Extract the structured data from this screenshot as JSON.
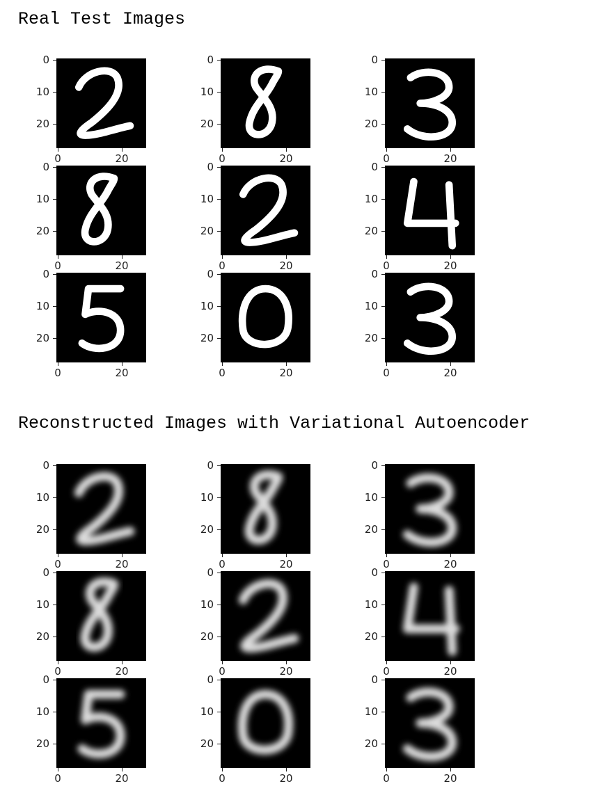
{
  "sections": [
    {
      "title": "Real Test Images",
      "style": "sharp",
      "panels": [
        {
          "digit": "2",
          "y_ticks": [
            "0",
            "10",
            "20"
          ],
          "x_ticks": [
            "0",
            "20"
          ]
        },
        {
          "digit": "8",
          "y_ticks": [
            "0",
            "10",
            "20"
          ],
          "x_ticks": [
            "0",
            "20"
          ]
        },
        {
          "digit": "3",
          "y_ticks": [
            "0",
            "10",
            "20"
          ],
          "x_ticks": [
            "0",
            "20"
          ]
        },
        {
          "digit": "8",
          "y_ticks": [
            "0",
            "10",
            "20"
          ],
          "x_ticks": [
            "0",
            "20"
          ]
        },
        {
          "digit": "2",
          "y_ticks": [
            "0",
            "10",
            "20"
          ],
          "x_ticks": [
            "0",
            "20"
          ]
        },
        {
          "digit": "4",
          "y_ticks": [
            "0",
            "10",
            "20"
          ],
          "x_ticks": [
            "0",
            "20"
          ]
        },
        {
          "digit": "5",
          "y_ticks": [
            "0",
            "10",
            "20"
          ],
          "x_ticks": [
            "0",
            "20"
          ]
        },
        {
          "digit": "0",
          "y_ticks": [
            "0",
            "10",
            "20"
          ],
          "x_ticks": [
            "0",
            "20"
          ]
        },
        {
          "digit": "3",
          "y_ticks": [
            "0",
            "10",
            "20"
          ],
          "x_ticks": [
            "0",
            "20"
          ]
        }
      ]
    },
    {
      "title": "Reconstructed Images with Variational Autoencoder",
      "style": "blurred",
      "panels": [
        {
          "digit": "2",
          "y_ticks": [
            "0",
            "10",
            "20"
          ],
          "x_ticks": [
            "0",
            "20"
          ]
        },
        {
          "digit": "8",
          "y_ticks": [
            "0",
            "10",
            "20"
          ],
          "x_ticks": [
            "0",
            "20"
          ]
        },
        {
          "digit": "3",
          "y_ticks": [
            "0",
            "10",
            "20"
          ],
          "x_ticks": [
            "0",
            "20"
          ]
        },
        {
          "digit": "8",
          "y_ticks": [
            "0",
            "10",
            "20"
          ],
          "x_ticks": [
            "0",
            "20"
          ]
        },
        {
          "digit": "2",
          "y_ticks": [
            "0",
            "10",
            "20"
          ],
          "x_ticks": [
            "0",
            "20"
          ]
        },
        {
          "digit": "4",
          "y_ticks": [
            "0",
            "10",
            "20"
          ],
          "x_ticks": [
            "0",
            "20"
          ]
        },
        {
          "digit": "5",
          "y_ticks": [
            "0",
            "10",
            "20"
          ],
          "x_ticks": [
            "0",
            "20"
          ]
        },
        {
          "digit": "0",
          "y_ticks": [
            "0",
            "10",
            "20"
          ],
          "x_ticks": [
            "0",
            "20"
          ]
        },
        {
          "digit": "3",
          "y_ticks": [
            "0",
            "10",
            "20"
          ],
          "x_ticks": [
            "0",
            "20"
          ]
        }
      ]
    }
  ],
  "colors": {
    "image_bg": "#000000",
    "stroke": "#ffffff",
    "ticks": "#222222"
  }
}
